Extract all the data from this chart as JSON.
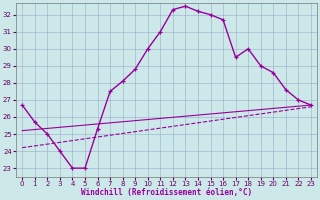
{
  "xlabel": "Windchill (Refroidissement éolien,°C)",
  "xlim": [
    -0.5,
    23.5
  ],
  "ylim": [
    22.5,
    32.7
  ],
  "yticks": [
    23,
    24,
    25,
    26,
    27,
    28,
    29,
    30,
    31,
    32
  ],
  "xticks": [
    0,
    1,
    2,
    3,
    4,
    5,
    6,
    7,
    8,
    9,
    10,
    11,
    12,
    13,
    14,
    15,
    16,
    17,
    18,
    19,
    20,
    21,
    22,
    23
  ],
  "bg_color": "#cce8e8",
  "line_color": "#990099",
  "grid_color": "#99aacc",
  "curve1_x": [
    0,
    1,
    2,
    3,
    4,
    5,
    6,
    7,
    8,
    9,
    10,
    11,
    12,
    13,
    14,
    15,
    16,
    17,
    18,
    19,
    20,
    21,
    22,
    23
  ],
  "curve1_y": [
    26.7,
    25.7,
    25.0,
    24.0,
    23.0,
    23.0,
    25.3,
    27.5,
    28.1,
    28.8,
    30.0,
    31.0,
    32.3,
    32.5,
    32.2,
    32.0,
    31.7,
    29.5,
    30.0,
    29.0,
    28.6,
    27.6,
    27.0,
    26.7
  ],
  "curve2_x": [
    0,
    23
  ],
  "curve2_y": [
    24.2,
    26.6
  ],
  "curve3_x": [
    0,
    23
  ],
  "curve3_y": [
    25.2,
    26.7
  ]
}
